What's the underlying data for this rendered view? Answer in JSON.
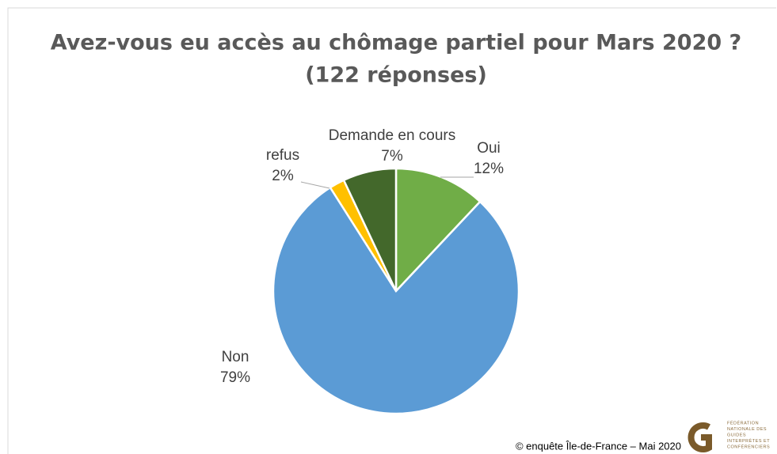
{
  "chart_data": {
    "type": "pie",
    "title": "Avez-vous eu accès au chômage partiel pour Mars 2020 ?",
    "subtitle": "(122 réponses)",
    "categories": [
      "Oui",
      "Non",
      "refus",
      "Demande en cours"
    ],
    "values": [
      12,
      79,
      2,
      7
    ],
    "value_labels": [
      "12%",
      "79%",
      "2%",
      "7%"
    ],
    "colors": [
      "#70ad47",
      "#5b9bd5",
      "#ffc000",
      "#43682b"
    ]
  },
  "footer": {
    "credit": "© enquête Île-de-France – Mai 2020",
    "logo_lines": [
      "FÉDÉRATION",
      "NATIONALE DES",
      "GUIDES",
      "INTERPRÈTES ET",
      "CONFÉRENCIERS"
    ]
  }
}
